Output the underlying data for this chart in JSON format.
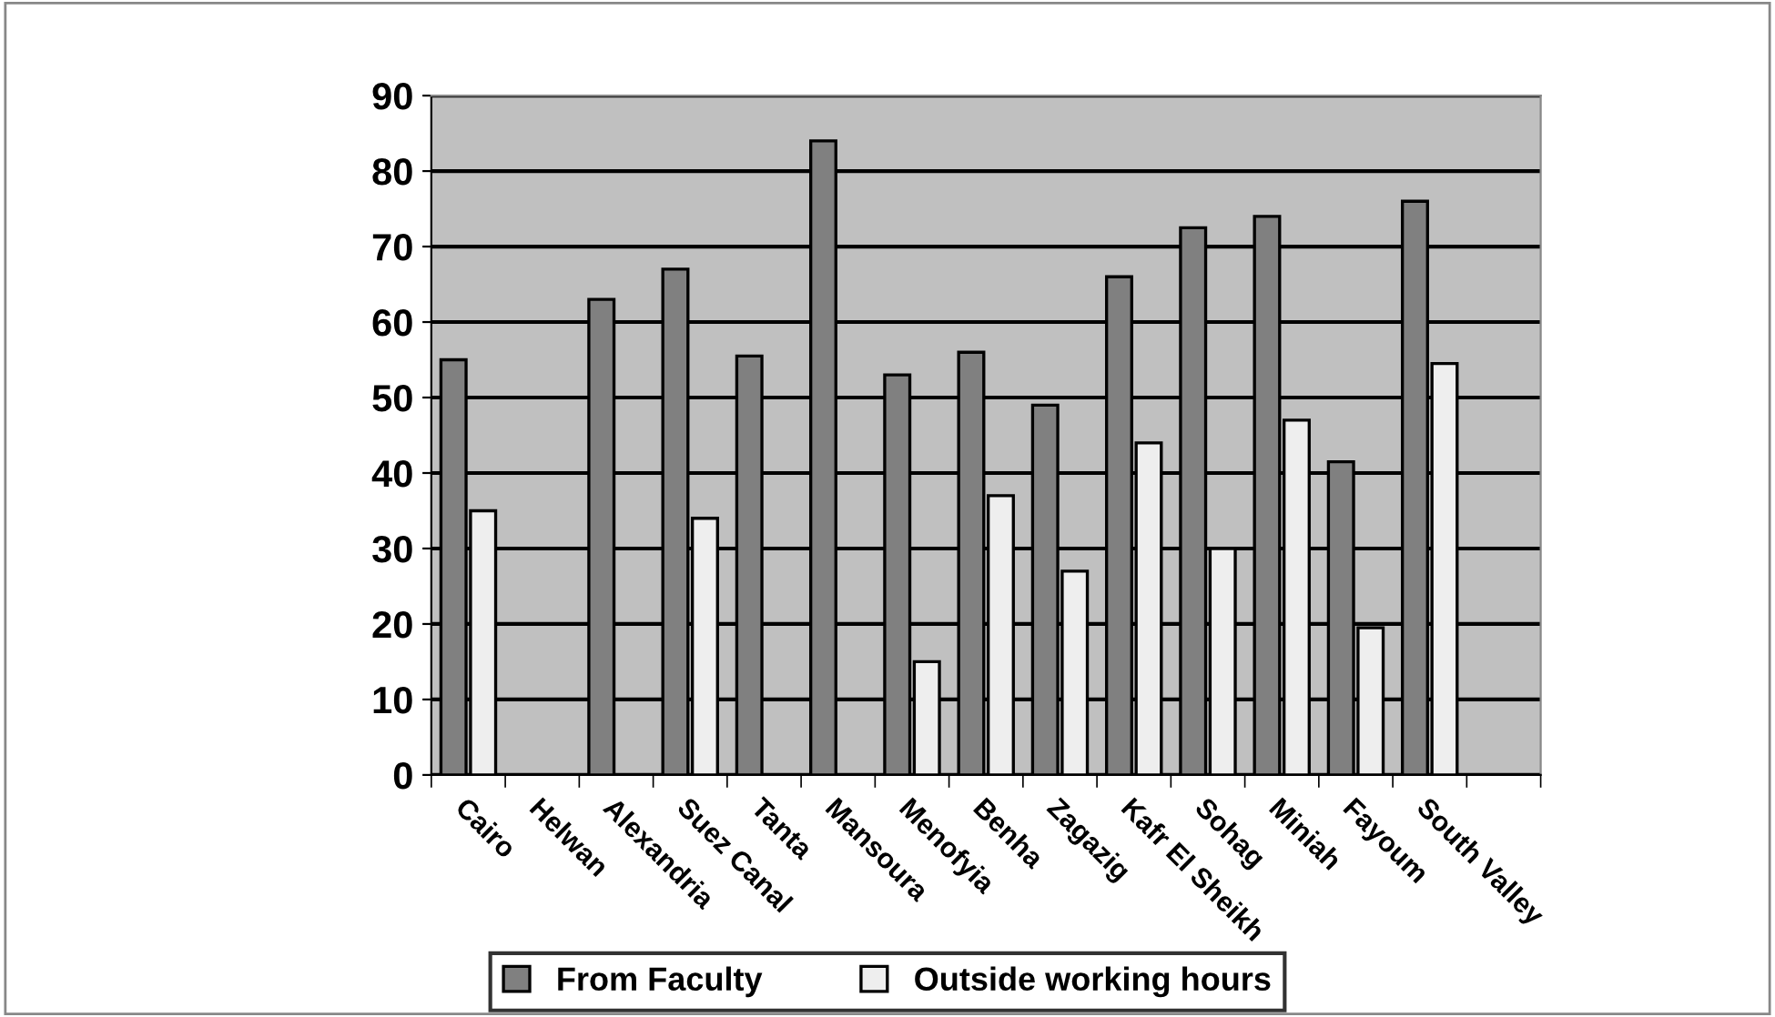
{
  "chart_data": {
    "type": "bar",
    "categories": [
      "Cairo",
      "Helwan",
      "Alexandria",
      "Suez Canal",
      "Tanta",
      "Mansoura",
      "Menofyia",
      "Benha",
      "Zagazig",
      "Kafr El Sheikh",
      "Sohag",
      "Miniah",
      "Fayoum",
      "South Valley",
      null
    ],
    "series": [
      {
        "name": "From Faculty",
        "color": "#808080",
        "values": [
          55,
          null,
          63,
          67,
          55.5,
          84,
          53,
          56,
          49,
          66,
          72.5,
          74,
          41.5,
          76,
          null
        ]
      },
      {
        "name": "Outside working hours",
        "color": "#eeeeee",
        "values": [
          35,
          null,
          null,
          34,
          null,
          null,
          15,
          37,
          27,
          44,
          30,
          47,
          19.5,
          54.5,
          null
        ]
      }
    ],
    "ylim": [
      0,
      90
    ],
    "yticks": [
      0,
      10,
      20,
      30,
      40,
      50,
      60,
      70,
      80,
      90
    ],
    "grid": "y",
    "legend": "bottom"
  }
}
